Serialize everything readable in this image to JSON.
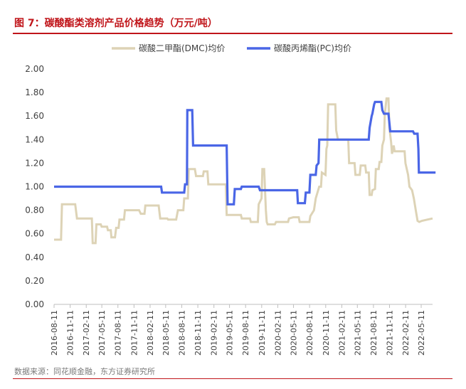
{
  "header": {
    "figure_label": "图 7：",
    "title": "碳酸酯类溶剂产品价格趋势（万元/吨）"
  },
  "footer": {
    "source": "数据来源：同花顺金融，东方证券研究所"
  },
  "colors": {
    "dmc": "#ddd3b6",
    "pc": "#4a66e6",
    "accent": "#c0151a",
    "axis": "#bfbfbf"
  },
  "chart_data": {
    "type": "line",
    "title": "碳酸酯类溶剂产品价格趋势（万元/吨）",
    "xlabel": "",
    "ylabel": "",
    "ylim": [
      0,
      2.0
    ],
    "yticks": [
      "0.00",
      "0.20",
      "0.40",
      "0.60",
      "0.80",
      "1.00",
      "1.20",
      "1.40",
      "1.60",
      "1.80",
      "2.00"
    ],
    "xticks": [
      "2016-08-11",
      "2016-11-11",
      "2017-02-11",
      "2017-05-11",
      "2017-08-11",
      "2017-11-11",
      "2018-02-11",
      "2018-05-11",
      "2018-08-11",
      "2018-11-11",
      "2019-02-11",
      "2019-05-11",
      "2019-08-11",
      "2019-11-11",
      "2020-02-11",
      "2020-05-11",
      "2020-08-11",
      "2020-11-11",
      "2021-02-11",
      "2021-05-11",
      "2021-08-11",
      "2021-11-11",
      "2022-02-11",
      "2022-05-11"
    ],
    "grid": false,
    "legend": "top",
    "series": [
      {
        "name": "碳酸二甲酯(DMC)均价",
        "color": "#ddd3b6",
        "points": [
          [
            "2016-08-11",
            0.55
          ],
          [
            "2016-09-20",
            0.55
          ],
          [
            "2016-09-25",
            0.85
          ],
          [
            "2016-12-10",
            0.85
          ],
          [
            "2016-12-20",
            0.73
          ],
          [
            "2017-03-15",
            0.73
          ],
          [
            "2017-03-20",
            0.52
          ],
          [
            "2017-04-05",
            0.52
          ],
          [
            "2017-04-10",
            0.68
          ],
          [
            "2017-05-05",
            0.68
          ],
          [
            "2017-05-10",
            0.66
          ],
          [
            "2017-06-10",
            0.66
          ],
          [
            "2017-06-15",
            0.63
          ],
          [
            "2017-07-01",
            0.63
          ],
          [
            "2017-07-05",
            0.57
          ],
          [
            "2017-07-25",
            0.57
          ],
          [
            "2017-08-01",
            0.65
          ],
          [
            "2017-08-15",
            0.65
          ],
          [
            "2017-08-20",
            0.72
          ],
          [
            "2017-09-15",
            0.72
          ],
          [
            "2017-09-20",
            0.8
          ],
          [
            "2017-12-10",
            0.8
          ],
          [
            "2017-12-20",
            0.77
          ],
          [
            "2018-01-10",
            0.77
          ],
          [
            "2018-01-15",
            0.84
          ],
          [
            "2018-04-01",
            0.84
          ],
          [
            "2018-04-10",
            0.73
          ],
          [
            "2018-05-20",
            0.73
          ],
          [
            "2018-05-25",
            0.72
          ],
          [
            "2018-07-10",
            0.72
          ],
          [
            "2018-07-20",
            0.8
          ],
          [
            "2018-08-20",
            0.8
          ],
          [
            "2018-08-25",
            0.9
          ],
          [
            "2018-09-15",
            0.9
          ],
          [
            "2018-09-20",
            1.15
          ],
          [
            "2018-10-25",
            1.15
          ],
          [
            "2018-11-01",
            1.09
          ],
          [
            "2018-12-10",
            1.09
          ],
          [
            "2018-12-15",
            1.13
          ],
          [
            "2019-01-05",
            1.13
          ],
          [
            "2019-01-10",
            1.02
          ],
          [
            "2019-04-20",
            1.02
          ],
          [
            "2019-04-25",
            0.76
          ],
          [
            "2019-07-15",
            0.76
          ],
          [
            "2019-07-20",
            0.73
          ],
          [
            "2019-09-05",
            0.73
          ],
          [
            "2019-09-10",
            0.7
          ],
          [
            "2019-10-20",
            0.7
          ],
          [
            "2019-10-25",
            0.85
          ],
          [
            "2019-11-10",
            0.9
          ],
          [
            "2019-11-15",
            1.15
          ],
          [
            "2019-11-25",
            1.15
          ],
          [
            "2019-12-05",
            0.8
          ],
          [
            "2019-12-10",
            0.7
          ],
          [
            "2019-12-15",
            0.68
          ],
          [
            "2020-01-25",
            0.68
          ],
          [
            "2020-02-01",
            0.7
          ],
          [
            "2020-04-10",
            0.7
          ],
          [
            "2020-04-15",
            0.73
          ],
          [
            "2020-05-10",
            0.74
          ],
          [
            "2020-06-10",
            0.74
          ],
          [
            "2020-06-15",
            0.7
          ],
          [
            "2020-08-10",
            0.7
          ],
          [
            "2020-08-15",
            0.75
          ],
          [
            "2020-09-05",
            0.8
          ],
          [
            "2020-09-15",
            0.9
          ],
          [
            "2020-10-05",
            1.0
          ],
          [
            "2020-10-15",
            1.0
          ],
          [
            "2020-10-20",
            1.12
          ],
          [
            "2020-11-10",
            1.1
          ],
          [
            "2020-11-15",
            1.32
          ],
          [
            "2020-11-20",
            1.35
          ],
          [
            "2020-11-25",
            1.7
          ],
          [
            "2021-01-05",
            1.7
          ],
          [
            "2021-01-10",
            1.48
          ],
          [
            "2021-01-20",
            1.4
          ],
          [
            "2021-02-01",
            1.4
          ],
          [
            "2021-03-20",
            1.4
          ],
          [
            "2021-03-25",
            1.2
          ],
          [
            "2021-04-25",
            1.2
          ],
          [
            "2021-04-30",
            1.1
          ],
          [
            "2021-05-25",
            1.1
          ],
          [
            "2021-05-30",
            1.18
          ],
          [
            "2021-06-25",
            1.18
          ],
          [
            "2021-06-30",
            1.12
          ],
          [
            "2021-07-15",
            1.12
          ],
          [
            "2021-07-20",
            0.93
          ],
          [
            "2021-08-01",
            0.93
          ],
          [
            "2021-08-05",
            0.97
          ],
          [
            "2021-08-20",
            0.98
          ],
          [
            "2021-08-25",
            1.15
          ],
          [
            "2021-09-10",
            1.15
          ],
          [
            "2021-09-15",
            1.21
          ],
          [
            "2021-09-25",
            1.21
          ],
          [
            "2021-10-01",
            1.35
          ],
          [
            "2021-10-10",
            1.4
          ],
          [
            "2021-10-15",
            1.62
          ],
          [
            "2021-10-25",
            1.75
          ],
          [
            "2021-11-05",
            1.75
          ],
          [
            "2021-11-10",
            1.5
          ],
          [
            "2021-11-20",
            1.38
          ],
          [
            "2021-11-25",
            1.28
          ],
          [
            "2021-12-05",
            1.35
          ],
          [
            "2021-12-10",
            1.3
          ],
          [
            "2022-02-05",
            1.3
          ],
          [
            "2022-02-10",
            1.2
          ],
          [
            "2022-02-25",
            1.1
          ],
          [
            "2022-03-05",
            1.0
          ],
          [
            "2022-03-20",
            0.97
          ],
          [
            "2022-03-30",
            0.9
          ],
          [
            "2022-04-10",
            0.8
          ],
          [
            "2022-04-20",
            0.71
          ],
          [
            "2022-04-30",
            0.7
          ],
          [
            "2022-05-15",
            0.71
          ],
          [
            "2022-06-15",
            0.72
          ],
          [
            "2022-07-15",
            0.73
          ]
        ]
      },
      {
        "name": "碳酸丙烯酯(PC)均价",
        "color": "#4a66e6",
        "points": [
          [
            "2016-08-11",
            1.0
          ],
          [
            "2018-04-15",
            1.0
          ],
          [
            "2018-04-20",
            0.95
          ],
          [
            "2018-08-25",
            0.95
          ],
          [
            "2018-08-30",
            1.02
          ],
          [
            "2018-09-10",
            1.02
          ],
          [
            "2018-09-12",
            1.65
          ],
          [
            "2018-10-10",
            1.65
          ],
          [
            "2018-10-15",
            1.35
          ],
          [
            "2019-04-25",
            1.35
          ],
          [
            "2019-04-30",
            0.85
          ],
          [
            "2019-06-05",
            0.85
          ],
          [
            "2019-06-10",
            0.98
          ],
          [
            "2019-07-15",
            0.98
          ],
          [
            "2019-07-20",
            1.0
          ],
          [
            "2019-10-25",
            1.0
          ],
          [
            "2019-11-01",
            0.97
          ],
          [
            "2020-06-01",
            0.97
          ],
          [
            "2020-06-05",
            0.86
          ],
          [
            "2020-07-15",
            0.86
          ],
          [
            "2020-07-20",
            0.95
          ],
          [
            "2020-08-10",
            0.95
          ],
          [
            "2020-08-15",
            1.1
          ],
          [
            "2020-09-15",
            1.1
          ],
          [
            "2020-09-20",
            1.18
          ],
          [
            "2020-10-01",
            1.2
          ],
          [
            "2020-10-05",
            1.4
          ],
          [
            "2021-07-15",
            1.4
          ],
          [
            "2021-07-20",
            1.5
          ],
          [
            "2021-08-01",
            1.6
          ],
          [
            "2021-08-05",
            1.62
          ],
          [
            "2021-08-15",
            1.7
          ],
          [
            "2021-08-20",
            1.72
          ],
          [
            "2021-09-25",
            1.72
          ],
          [
            "2021-10-01",
            1.65
          ],
          [
            "2021-10-10",
            1.62
          ],
          [
            "2021-11-05",
            1.62
          ],
          [
            "2021-11-15",
            1.47
          ],
          [
            "2022-03-25",
            1.47
          ],
          [
            "2022-04-01",
            1.45
          ],
          [
            "2022-04-20",
            1.45
          ],
          [
            "2022-04-25",
            1.32
          ],
          [
            "2022-04-28",
            1.12
          ],
          [
            "2022-08-01",
            1.12
          ]
        ]
      }
    ]
  }
}
